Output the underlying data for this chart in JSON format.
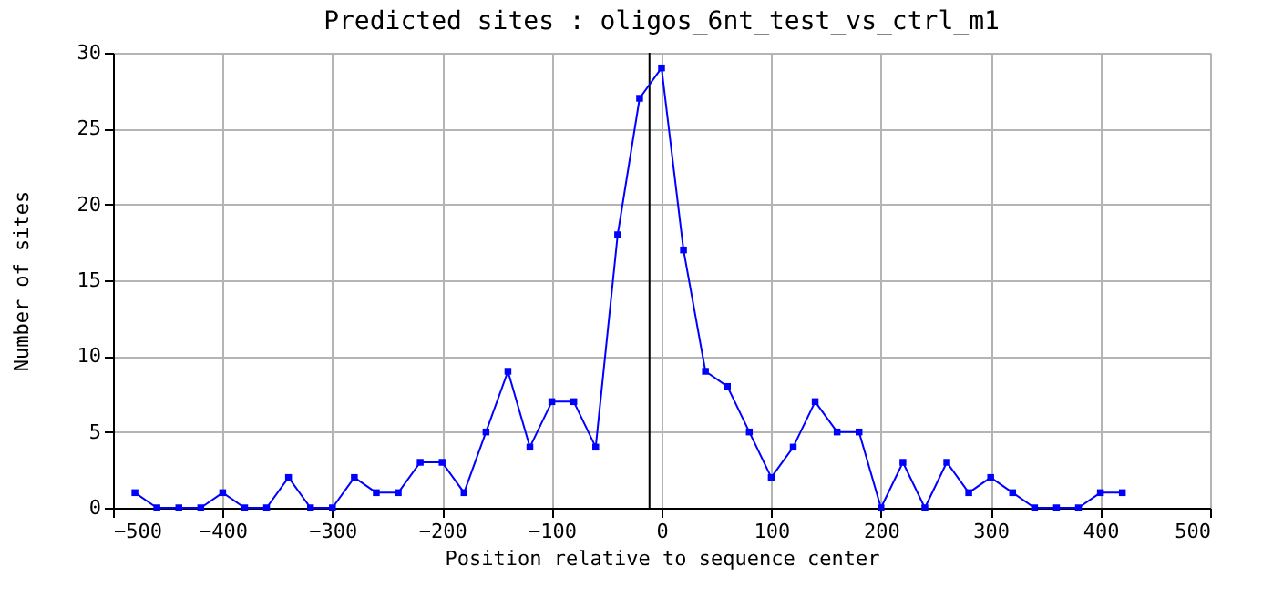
{
  "chart_data": {
    "type": "line",
    "title": "Predicted sites : oligos_6nt_test_vs_ctrl_m1",
    "xlabel": "Position relative to sequence center",
    "ylabel": "Number of sites",
    "x": [
      -480,
      -460,
      -440,
      -420,
      -400,
      -380,
      -360,
      -340,
      -320,
      -300,
      -280,
      -260,
      -240,
      -220,
      -200,
      -180,
      -160,
      -140,
      -120,
      -100,
      -80,
      -60,
      -40,
      -20,
      0,
      20,
      40,
      60,
      80,
      100,
      120,
      140,
      160,
      180,
      200,
      220,
      240,
      260,
      280,
      300,
      320,
      340,
      360,
      380,
      400,
      420
    ],
    "series": [
      {
        "color": "#0000ff",
        "values": [
          1,
          0,
          0,
          0,
          1,
          0,
          0,
          2,
          0,
          0,
          2,
          1,
          1,
          3,
          3,
          1,
          5,
          9,
          4,
          7,
          7,
          4,
          18,
          27,
          29,
          17,
          9,
          8,
          5,
          2,
          4,
          7,
          5,
          5,
          0,
          3,
          0,
          3,
          1,
          2,
          1,
          0,
          0,
          0,
          1,
          1
        ]
      }
    ],
    "xlim": [
      -500,
      500
    ],
    "xticks": [
      -500,
      -400,
      -300,
      -200,
      -100,
      0,
      100,
      200,
      300,
      400,
      500
    ],
    "ylim": [
      0,
      30
    ],
    "yticks": [
      0,
      5,
      10,
      15,
      20,
      25,
      30
    ],
    "ref_lines": [
      {
        "axis": "x",
        "value": -11,
        "color": "#000000"
      }
    ],
    "grid": true,
    "marker": "square",
    "line_style": "solid"
  }
}
